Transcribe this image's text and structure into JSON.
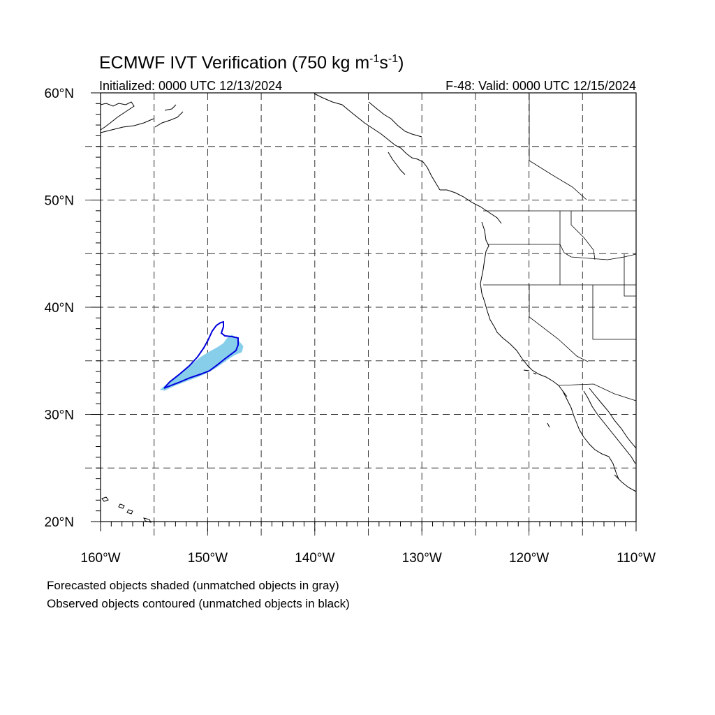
{
  "title": {
    "main": "ECMWF IVT Verification (750 kg m",
    "exp1": "-1",
    "mid": "s",
    "exp2": "-1",
    "close": ")"
  },
  "initialized": "Initialized: 0000 UTC 12/13/2024",
  "valid": "F-48: Valid: 0000 UTC 12/15/2024",
  "map": {
    "lon_range": [
      -160,
      -110
    ],
    "lat_range": [
      20,
      60
    ],
    "lat_labels": [
      "20°N",
      "30°N",
      "40°N",
      "50°N",
      "60°N"
    ],
    "lon_labels": [
      "160°W",
      "150°W",
      "140°W",
      "130°W",
      "120°W",
      "110°W"
    ],
    "gridlines": "dashed every 5 degrees"
  },
  "objects": {
    "forecast_color": "#87ceeb",
    "observed_color": "#0000dd",
    "forecast_object": "shaded, matched",
    "observed_object": "contoured, matched"
  },
  "legend": {
    "line1": "Forecasted objects shaded (unmatched objects in gray)",
    "line2": "Observed objects contoured (unmatched objects in black)"
  }
}
